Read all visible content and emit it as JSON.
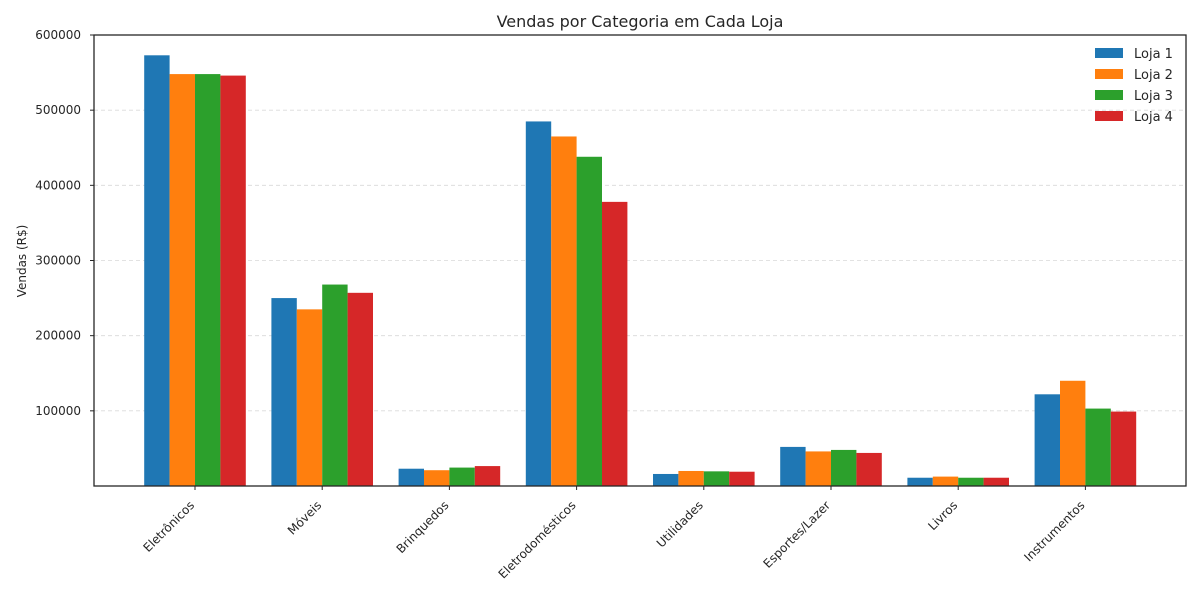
{
  "chart_data": {
    "type": "bar",
    "title": "Vendas por Categoria em Cada Loja",
    "xlabel": "",
    "ylabel": "Vendas (R$)",
    "ylim": [
      0,
      600000
    ],
    "yticks": [
      100000,
      200000,
      300000,
      400000,
      500000,
      600000
    ],
    "ytick_labels": [
      "100000",
      "200000",
      "300000",
      "400000",
      "500000",
      "600000"
    ],
    "grid": "horizontal dashed",
    "legend_placement": "top-right",
    "categories": [
      "Eletrônicos",
      "Móveis",
      "Brinquedos",
      "Eletrodomésticos",
      "Utilidades",
      "Esportes/Lazer",
      "Livros",
      "Instrumentos"
    ],
    "series": [
      {
        "name": "Loja 1",
        "color": "#1f77b4",
        "values": [
          573000,
          250000,
          23000,
          485000,
          16000,
          52000,
          11000,
          122000
        ]
      },
      {
        "name": "Loja 2",
        "color": "#ff7f0e",
        "values": [
          548000,
          235000,
          21000,
          465000,
          20000,
          46000,
          12500,
          140000
        ]
      },
      {
        "name": "Loja 3",
        "color": "#2ca02c",
        "values": [
          548000,
          268000,
          24500,
          438000,
          19500,
          48000,
          11000,
          103000
        ]
      },
      {
        "name": "Loja 4",
        "color": "#d62728",
        "values": [
          546000,
          257000,
          26500,
          378000,
          19000,
          44000,
          11000,
          99000
        ]
      }
    ]
  }
}
